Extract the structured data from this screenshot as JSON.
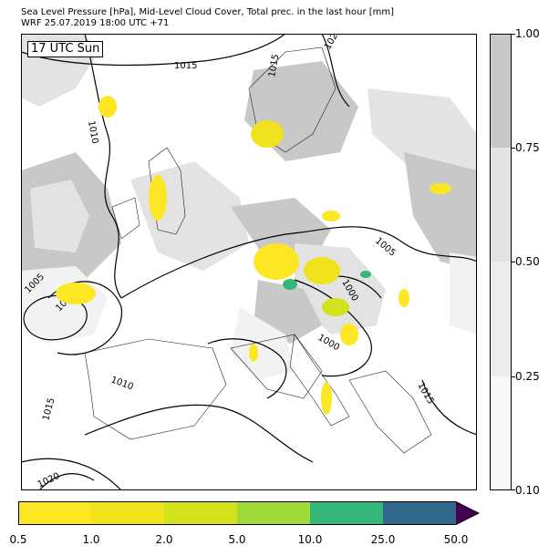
{
  "title_line1": "Sea Level Pressure [hPa], Mid-Level Cloud Cover, Total prec. in the last hour [mm]",
  "title_line2": "WRF 25.07.2019 18:00 UTC +71",
  "time_label": "17 UTC Sun",
  "colors": {
    "cloud_025_050": "#f2f2f2",
    "cloud_050_075": "#e3e3e3",
    "cloud_075_100": "#c8c8c8",
    "isobar": "#000000",
    "precip_scale": [
      "#fde725",
      "#f0e31e",
      "#d2e21b",
      "#a0da39",
      "#35b779",
      "#31688e",
      "#440154"
    ]
  },
  "cloud_colorbar": {
    "ticks": [
      "1.00",
      "0.75",
      "0.50",
      "0.25",
      "0.10"
    ],
    "levels": [
      1.0,
      0.75,
      0.5,
      0.25,
      0.1
    ]
  },
  "precip_colorbar": {
    "ticks": [
      "0.5",
      "1.0",
      "2.0",
      "5.0",
      "10.0",
      "25.0",
      "50.0"
    ]
  },
  "isobar_labels": [
    "1015",
    "1020",
    "1015",
    "1010",
    "1005",
    "1010",
    "1005",
    "1000",
    "1000",
    "1010",
    "1015",
    "1015",
    "1020"
  ]
}
